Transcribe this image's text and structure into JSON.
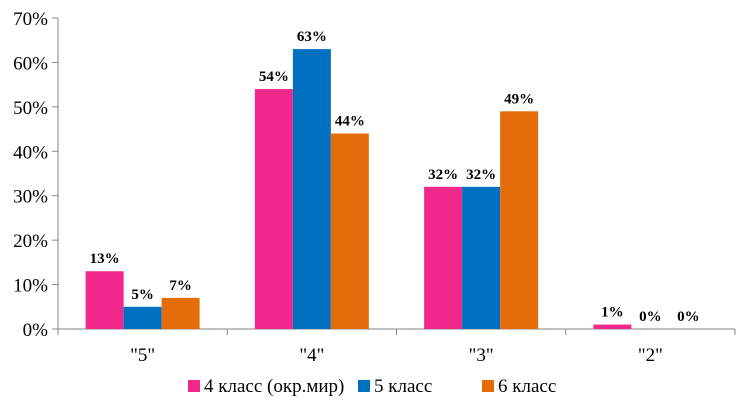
{
  "chart_data": {
    "type": "bar",
    "categories": [
      "\"5\"",
      "\"4\"",
      "\"3\"",
      "\"2\""
    ],
    "series": [
      {
        "name": "4 класс (окр.мир)",
        "values": [
          13,
          54,
          32,
          1
        ],
        "color": "#f0288c"
      },
      {
        "name": "5 класс",
        "values": [
          5,
          63,
          32,
          0
        ],
        "color": "#0070c0"
      },
      {
        "name": "6 класс",
        "values": [
          7,
          44,
          49,
          0
        ],
        "color": "#e46c0a"
      }
    ],
    "title": "",
    "xlabel": "",
    "ylabel": "",
    "ylim": [
      0,
      70
    ],
    "yticks": [
      0,
      10,
      20,
      30,
      40,
      50,
      60,
      70
    ],
    "y_tick_suffix": "%",
    "data_label_suffix": "%",
    "grid": false,
    "legend": "bottom"
  }
}
